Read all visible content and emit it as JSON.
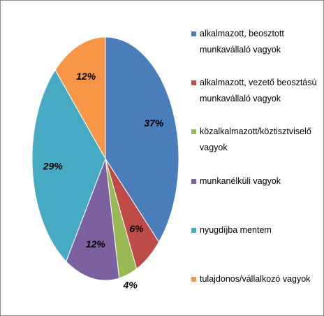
{
  "chart_data": {
    "type": "pie",
    "categories": [
      "alkalmazott, beosztott munkavállaló vagyok",
      "alkalmazott, vezető beosztású munkavállaló vagyok",
      "közalkalmazott/köztisztviselő vagyok",
      "munkanélküli vagyok",
      "nyugdíjba mentem",
      "tulajdonos/vállalkozó vagyok"
    ],
    "values": [
      37,
      6,
      4,
      12,
      29,
      12
    ],
    "value_labels": [
      "37%",
      "6%",
      "4%",
      "12%",
      "29%",
      "12%"
    ],
    "colors": [
      "#4a7ebb",
      "#be4b48",
      "#98b954",
      "#7d60a0",
      "#46aac5",
      "#f79646"
    ],
    "legend": "right"
  }
}
